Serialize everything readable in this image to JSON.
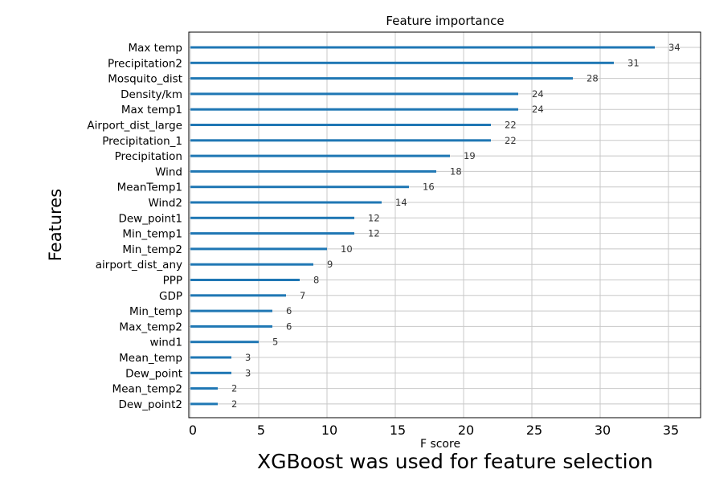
{
  "caption": "XGBoost was used for feature selection",
  "chart_data": {
    "type": "bar",
    "orientation": "horizontal",
    "title": "Feature importance",
    "xlabel": "F score",
    "ylabel": "Features",
    "xlim": [
      0,
      43
    ],
    "xticks": [
      "0",
      "5",
      "10",
      "15",
      "20",
      "25",
      "30",
      "35"
    ],
    "grid": true,
    "bar_color": "#1f77b4",
    "categories": [
      "Max temp",
      "Precipitation2",
      "Mosquito_dist",
      "Density/km",
      "Max temp1",
      "Airport_dist_large",
      "Precipitation_1",
      "Precipitation",
      "Wind",
      "MeanTemp1",
      "Wind2",
      "Dew_point1",
      "Min_temp1",
      "Min_temp2",
      "airport_dist_any",
      "PPP",
      "GDP",
      "Min_temp",
      "Max_temp2",
      "wind1",
      "Mean_temp",
      "Dew_point",
      "Mean_temp2",
      "Dew_point2"
    ],
    "values": [
      34,
      31,
      28,
      24,
      24,
      22,
      22,
      19,
      18,
      16,
      14,
      12,
      12,
      10,
      9,
      8,
      7,
      6,
      6,
      5,
      3,
      3,
      2,
      2
    ],
    "value_labels": [
      "34",
      "31",
      "28",
      "24",
      "24",
      "22",
      "22",
      "19",
      "18",
      "16",
      "14",
      "12",
      "12",
      "10",
      "9",
      "8",
      "7",
      "6",
      "6",
      "5",
      "3",
      "3",
      "2",
      "2"
    ]
  }
}
